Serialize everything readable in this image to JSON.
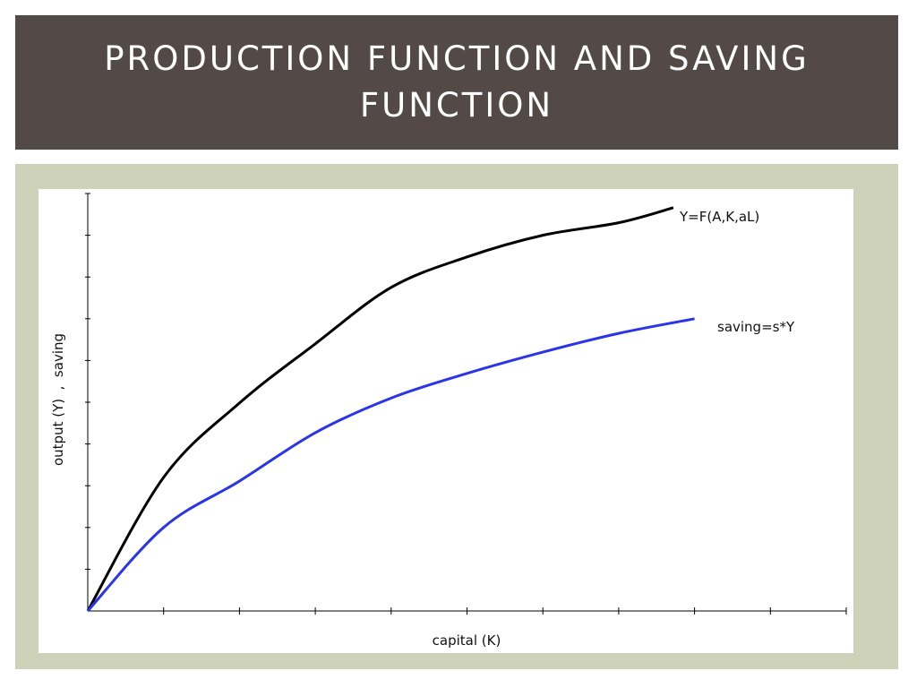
{
  "slide": {
    "title": "PRODUCTION FUNCTION AND SAVING FUNCTION"
  },
  "colors": {
    "header_bg": "#534947",
    "panel_bg": "#cdd2b8",
    "output_line": "#000000",
    "saving_line": "#2b35e8"
  },
  "chart_data": {
    "type": "line",
    "title": "",
    "xlabel": "capital (K)",
    "ylabel": "output (Y)  ,  saving",
    "xlim": [
      0,
      10
    ],
    "ylim": [
      0,
      10
    ],
    "x_ticks": 10,
    "y_ticks": 10,
    "tick_labels_shown": false,
    "grid": false,
    "series": [
      {
        "name": "Y=F(A,K,aL)",
        "x": [
          0,
          1,
          2,
          3,
          4,
          5,
          6,
          7,
          7.72
        ],
        "values": [
          0,
          3.2,
          4.98,
          6.4,
          7.75,
          8.48,
          9.0,
          9.3,
          9.66
        ]
      },
      {
        "name": "saving=s*Y",
        "x": [
          0,
          1,
          2,
          3,
          4,
          5,
          6,
          7,
          8
        ],
        "values": [
          0,
          2.0,
          3.11,
          4.27,
          5.1,
          5.69,
          6.2,
          6.65,
          7.0
        ]
      }
    ]
  }
}
